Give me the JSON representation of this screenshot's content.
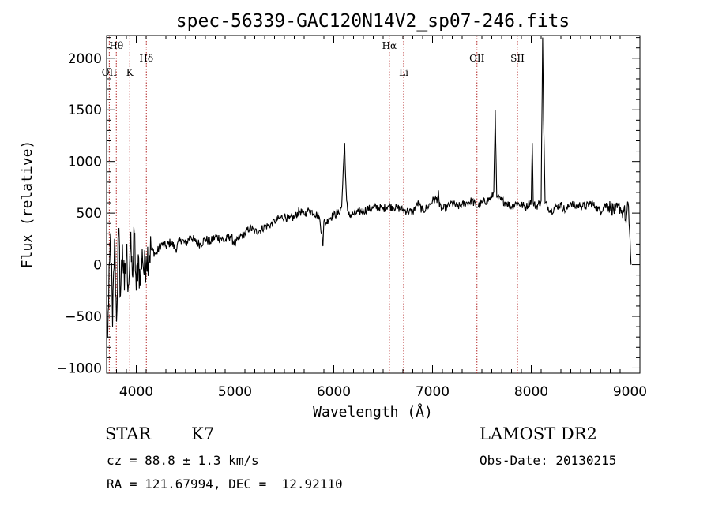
{
  "chart_data": {
    "type": "line",
    "title": "spec-56339-GAC120N14V2_sp07-246.fits",
    "xlabel": "Wavelength (Å)",
    "ylabel": "Flux (relative)",
    "xlim": [
      3700,
      9100
    ],
    "ylim": [
      -1050,
      2220
    ],
    "xticks": [
      4000,
      5000,
      6000,
      7000,
      8000,
      9000
    ],
    "xtick_labels": [
      "4000",
      "5000",
      "6000",
      "7000",
      "8000",
      "9000"
    ],
    "yticks": [
      -1000,
      -500,
      0,
      500,
      1000,
      1500,
      2000
    ],
    "ytick_labels": [
      "−1000",
      "−500",
      "0",
      "500",
      "1000",
      "1500",
      "2000"
    ],
    "grid": false,
    "line_color": "#000000",
    "marker_color": "#b22222",
    "spectral_lines": [
      {
        "label": "Hθ",
        "x": 3798,
        "row": "upper"
      },
      {
        "label": "OII",
        "x": 3727,
        "row": "lower"
      },
      {
        "label": "K",
        "x": 3934,
        "row": "lower"
      },
      {
        "label": "Hδ",
        "x": 4102,
        "row": "middle"
      },
      {
        "label": "Hα",
        "x": 6563,
        "row": "upper"
      },
      {
        "label": "Li",
        "x": 6708,
        "row": "lower"
      },
      {
        "label": "OII",
        "x": 7450,
        "row": "middle"
      },
      {
        "label": "SII",
        "x": 7860,
        "row": "middle"
      }
    ],
    "series": [
      {
        "x": [
          3700,
          3720,
          3740,
          3760,
          3780,
          3800,
          3820,
          3840,
          3860,
          3880,
          3900,
          3920,
          3940,
          3960,
          3980,
          4000,
          4020,
          4040,
          4060,
          4080,
          4100,
          4150,
          4200,
          4250,
          4300,
          4350,
          4400,
          4450,
          4500,
          4550,
          4600,
          4650,
          4700,
          4750,
          4800,
          4850,
          4900,
          4950,
          5000,
          5050,
          5100,
          5150,
          5200,
          5250,
          5300,
          5350,
          5400,
          5450,
          5500,
          5550,
          5600,
          5650,
          5700,
          5750,
          5800,
          5850,
          5880,
          5890,
          5900,
          5920,
          5950,
          6000,
          6050,
          6080,
          6100,
          6110,
          6120,
          6130,
          6140,
          6150,
          6200,
          6250,
          6300,
          6350,
          6400,
          6450,
          6500,
          6550,
          6600,
          6650,
          6700,
          6750,
          6800,
          6850,
          6900,
          6950,
          7000,
          7050,
          7060,
          7070,
          7100,
          7150,
          7200,
          7250,
          7300,
          7350,
          7400,
          7450,
          7500,
          7550,
          7600,
          7620,
          7635,
          7650,
          7700,
          7750,
          7800,
          7850,
          7900,
          7950,
          8000,
          8010,
          8020,
          8050,
          8100,
          8115,
          8125,
          8140,
          8200,
          8250,
          8300,
          8350,
          8400,
          8450,
          8500,
          8550,
          8600,
          8650,
          8700,
          8750,
          8800,
          8850,
          8900,
          8920,
          8940,
          8960,
          8980,
          9000,
          9010
        ],
        "y": [
          -850,
          -400,
          300,
          -600,
          250,
          -550,
          350,
          -300,
          200,
          -250,
          150,
          -200,
          180,
          -100,
          300,
          -250,
          100,
          -200,
          150,
          -100,
          80,
          150,
          100,
          200,
          180,
          220,
          150,
          250,
          200,
          280,
          220,
          200,
          250,
          220,
          270,
          260,
          230,
          280,
          200,
          270,
          300,
          360,
          320,
          330,
          370,
          380,
          420,
          450,
          470,
          440,
          460,
          520,
          490,
          530,
          500,
          470,
          300,
          180,
          420,
          400,
          450,
          480,
          500,
          560,
          1000,
          1180,
          850,
          620,
          520,
          480,
          490,
          510,
          520,
          540,
          550,
          560,
          540,
          570,
          560,
          550,
          530,
          520,
          510,
          600,
          520,
          560,
          620,
          640,
          720,
          560,
          540,
          560,
          600,
          560,
          580,
          600,
          620,
          560,
          600,
          620,
          650,
          700,
          1500,
          650,
          620,
          600,
          560,
          600,
          580,
          560,
          620,
          1180,
          600,
          560,
          620,
          2200,
          1400,
          600,
          520,
          560,
          580,
          520,
          600,
          560,
          580,
          560,
          600,
          560,
          520,
          580,
          560,
          520,
          560,
          500,
          550,
          400,
          600,
          250,
          0
        ]
      }
    ]
  },
  "info": {
    "object_class": "STAR",
    "subclass": "K7",
    "survey": "LAMOST DR2",
    "cz": "cz = 88.8 ± 1.3 km/s",
    "obs_date": "Obs-Date: 20130215",
    "coords": "RA = 121.67994, DEC =  12.92110"
  }
}
